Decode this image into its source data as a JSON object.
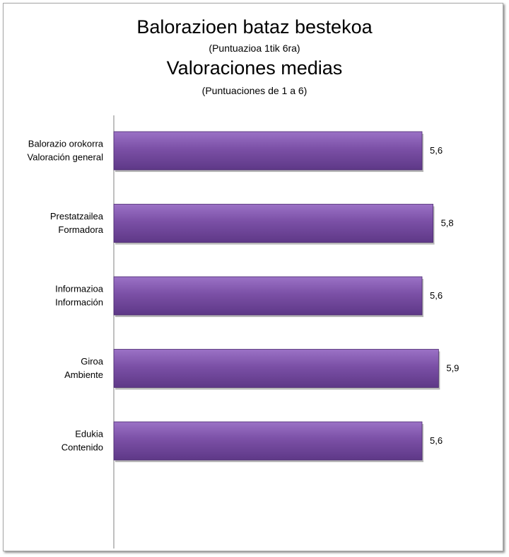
{
  "chart_data": {
    "type": "bar",
    "orientation": "horizontal",
    "title": "Balorazioen bataz bestekoa",
    "subtitle": "(Puntuazioa 1tik 6ra)",
    "title_secondary": "Valoraciones medias",
    "subtitle_secondary": "(Puntuaciones de 1 a 6)",
    "categories": [
      [
        "Balorazio orokorra",
        "Valoración general"
      ],
      [
        "Prestatzailea",
        "Formadora"
      ],
      [
        "Informazioa",
        "Información"
      ],
      [
        "Giroa",
        "Ambiente"
      ],
      [
        "Edukia",
        "Contenido"
      ]
    ],
    "values": [
      5.6,
      5.8,
      5.6,
      5.9,
      5.6
    ],
    "value_labels": [
      "5,6",
      "5,8",
      "5,6",
      "5,9",
      "5,6"
    ],
    "xlim": [
      0,
      6
    ],
    "grid": false,
    "legend": "none",
    "bar_color": "#7a4fa3"
  }
}
